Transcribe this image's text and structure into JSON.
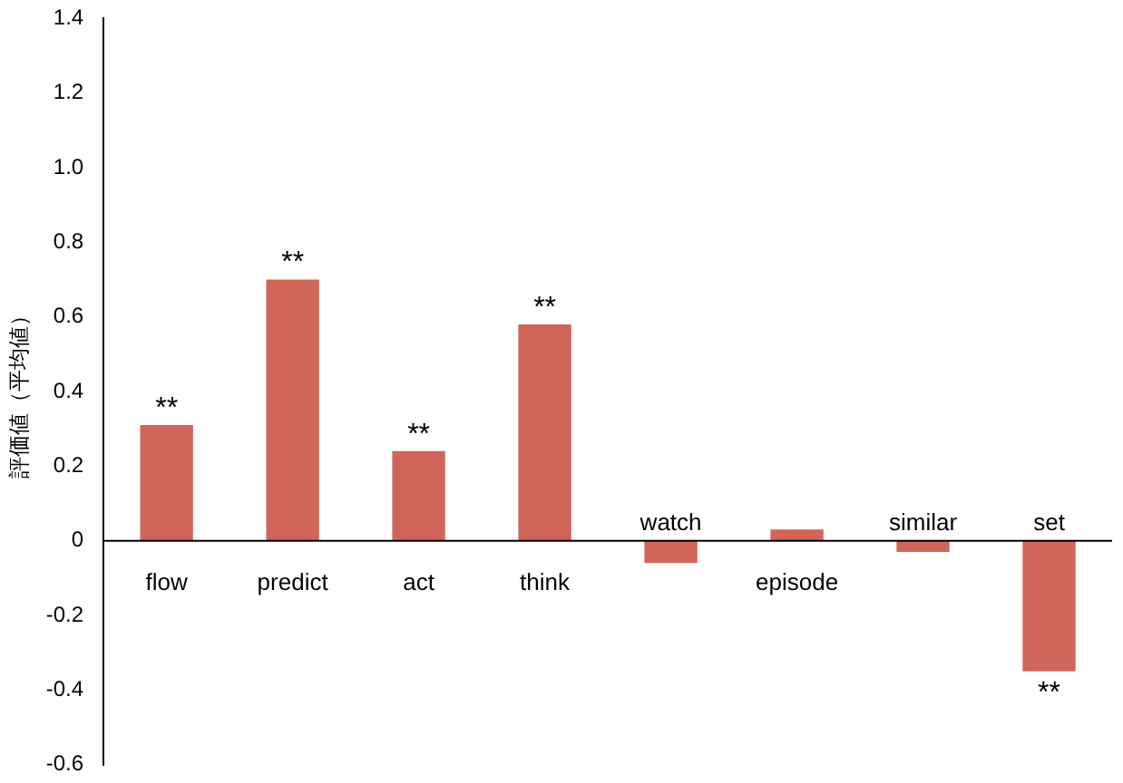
{
  "chart_data": {
    "type": "bar",
    "ylabel": "評価値（平均値）",
    "categories": [
      "flow",
      "predict",
      "act",
      "think",
      "watch",
      "episode",
      "similar",
      "set"
    ],
    "values": [
      0.31,
      0.7,
      0.24,
      0.58,
      -0.06,
      0.03,
      -0.03,
      -0.35
    ],
    "color": "#d0655a",
    "ylim": [
      -0.6,
      1.4
    ],
    "yticks": [
      -0.6,
      -0.4,
      -0.2,
      0,
      0.2,
      0.4,
      0.6,
      0.8,
      {
        "value": 1.0,
        "label": "1.0"
      },
      1.2,
      1.4
    ],
    "grid": false,
    "legend": false,
    "annotations": [
      {
        "text": "**",
        "x": "flow",
        "y": 0.31
      },
      {
        "text": "**",
        "x": "predict",
        "y": 0.7
      },
      {
        "text": "**",
        "x": "act",
        "y": 0.24
      },
      {
        "text": "**",
        "x": "think",
        "y": 0.58
      },
      {
        "text": "**",
        "x": "set",
        "y": -0.35
      }
    ]
  }
}
